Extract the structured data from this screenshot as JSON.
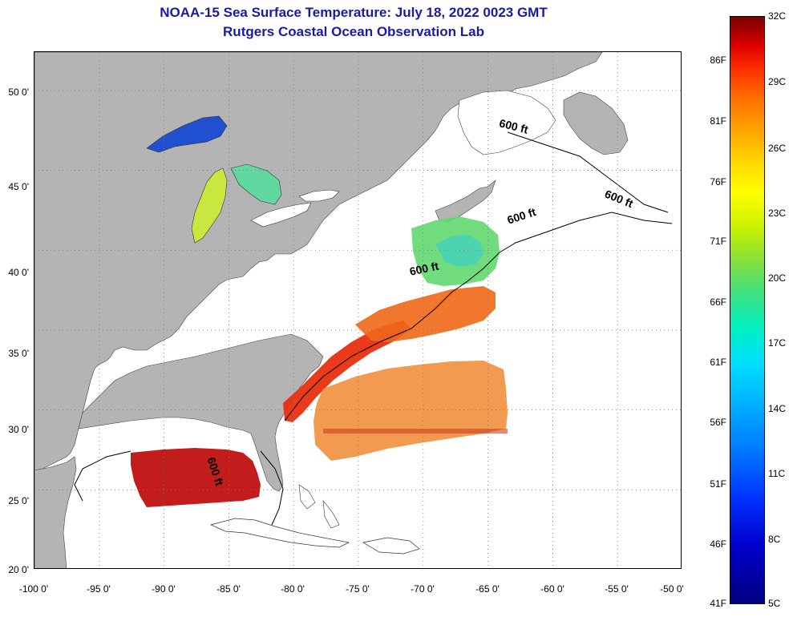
{
  "title": {
    "line1": "NOAA-15 Sea Surface Temperature:  July 18, 2022 0023 GMT",
    "line2": "Rutgers Coastal Ocean Observation Lab"
  },
  "axes": {
    "x_ticks": [
      "-100 0'",
      "-95 0'",
      "-90 0'",
      "-85 0'",
      "-80 0'",
      "-75 0'",
      "-70 0'",
      "-65 0'",
      "-60 0'",
      "-55 0'",
      "-50 0'"
    ],
    "y_ticks": [
      "50 0'",
      "45 0'",
      "40 0'",
      "35 0'",
      "30 0'",
      "25 0'",
      "20 0'"
    ],
    "lon_range": [
      -100,
      -50
    ],
    "lat_range": [
      20,
      52.4
    ],
    "grid": true
  },
  "colorbar": {
    "fahrenheit_labels": [
      "86F",
      "81F",
      "76F",
      "71F",
      "66F",
      "61F",
      "56F",
      "51F",
      "46F",
      "41F"
    ],
    "celsius_labels": [
      "32C",
      "29C",
      "26C",
      "23C",
      "20C",
      "17C",
      "14C",
      "11C",
      "8C",
      "5C"
    ],
    "range_c": [
      5,
      32
    ]
  },
  "contour_labels": [
    "600 ft",
    "600 ft",
    "600 ft",
    "600 ft",
    "600 ft"
  ],
  "colors": {
    "land": "#b4b4b4",
    "title": "#1a1aa8",
    "ocean_no_data": "#ffffff"
  }
}
